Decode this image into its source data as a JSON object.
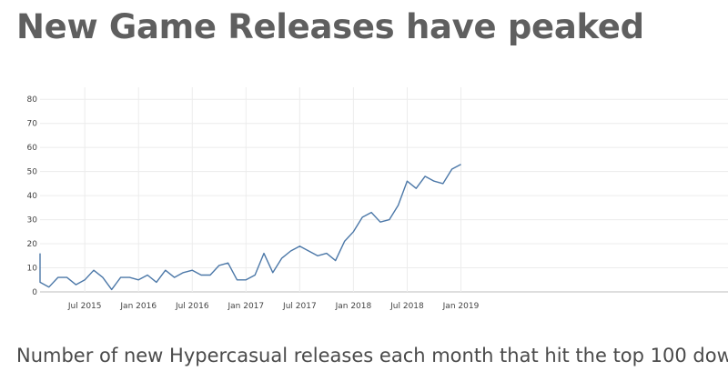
{
  "header": {
    "title": "New Game Releases have peaked"
  },
  "caption": "Number of new Hypercasual releases each month that hit the top 100 dow",
  "chart_data": {
    "type": "line",
    "title": "New Game Releases have peaked",
    "xlabel": "",
    "ylabel": "",
    "x": [
      "2015-02",
      "2015-03",
      "2015-04",
      "2015-05",
      "2015-06",
      "2015-07",
      "2015-08",
      "2015-09",
      "2015-10",
      "2015-11",
      "2015-12",
      "2016-01",
      "2016-02",
      "2016-03",
      "2016-04",
      "2016-05",
      "2016-06",
      "2016-07",
      "2016-08",
      "2016-09",
      "2016-10",
      "2016-11",
      "2016-12",
      "2017-01",
      "2017-02",
      "2017-03",
      "2017-04",
      "2017-05",
      "2017-06",
      "2017-07",
      "2017-08",
      "2017-09",
      "2017-10",
      "2017-11",
      "2017-12",
      "2018-01",
      "2018-02",
      "2018-03",
      "2018-04",
      "2018-05",
      "2018-06",
      "2018-07",
      "2018-08",
      "2018-09",
      "2018-10",
      "2018-11",
      "2018-12",
      "2019-01"
    ],
    "values": [
      4,
      2,
      6,
      6,
      3,
      5,
      9,
      6,
      1,
      6,
      6,
      5,
      7,
      4,
      9,
      6,
      8,
      9,
      7,
      7,
      11,
      12,
      5,
      5,
      7,
      16,
      8,
      14,
      17,
      19,
      17,
      15,
      16,
      13,
      21,
      25,
      31,
      33,
      29,
      30,
      36,
      46,
      43,
      48,
      46,
      45,
      51,
      53
    ],
    "x_tick_labels": [
      "Jul 2015",
      "Jan 2016",
      "Jul 2016",
      "Jan 2017",
      "Jul 2017",
      "Jan 2018",
      "Jul 2018",
      "Jan 2019"
    ],
    "y_ticks": [
      0,
      10,
      20,
      30,
      40,
      50,
      60,
      70,
      80
    ],
    "ylim": [
      0,
      85
    ],
    "grid": true,
    "line_color": "#4c78a8"
  }
}
